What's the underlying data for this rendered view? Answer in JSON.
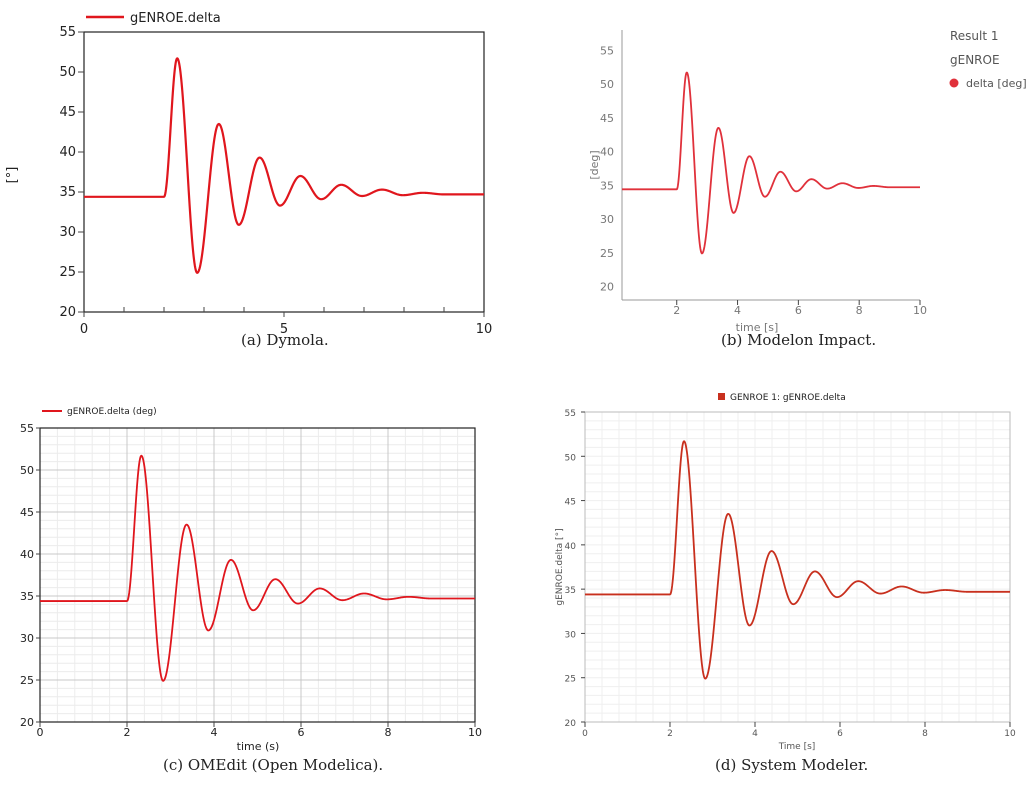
{
  "chart_data": [
    {
      "type": "line",
      "panel": "a",
      "caption": "(a) Dymola.",
      "legend": [
        "gENROE.delta"
      ],
      "ylabel": "[°]",
      "xlabel": "",
      "xlim": [
        0,
        10
      ],
      "ylim": [
        20,
        55
      ],
      "xticks": [
        0,
        5,
        10
      ],
      "yticks": [
        20,
        25,
        30,
        35,
        40,
        45,
        50,
        55
      ],
      "series": [
        {
          "name": "gENROE.delta",
          "color": "#e0161d"
        }
      ],
      "signal": {
        "t_step": 2.0,
        "steady_before": 34.4,
        "final": 34.7,
        "extrema_t": [
          2.33,
          2.83,
          3.37,
          3.87,
          4.39,
          4.9,
          5.41,
          5.93,
          6.43,
          6.95,
          7.45,
          7.97,
          8.47
        ],
        "extrema_v": [
          51.7,
          24.9,
          43.5,
          30.9,
          39.3,
          33.3,
          37.0,
          34.1,
          35.9,
          34.5,
          35.3,
          34.6,
          34.9
        ]
      }
    },
    {
      "type": "line",
      "panel": "b",
      "caption": "(b) Modelon Impact.",
      "legend_title_1": "Result 1",
      "legend_title_2": "gENROE",
      "legend": [
        "delta [deg]"
      ],
      "ylabel": "[deg]",
      "xlabel": "time [s]",
      "xlim": [
        0,
        10
      ],
      "ylim": [
        18,
        58
      ],
      "xticks": [
        2,
        4,
        6,
        8,
        10
      ],
      "yticks": [
        20,
        25,
        30,
        35,
        40,
        45,
        50,
        55
      ],
      "series": [
        {
          "name": "delta [deg]",
          "color": "#e0313b"
        }
      ],
      "signal": {
        "t_step": 2.0,
        "steady_before": 34.4,
        "final": 34.7,
        "extrema_t": [
          2.33,
          2.83,
          3.37,
          3.87,
          4.39,
          4.9,
          5.41,
          5.93,
          6.43,
          6.95,
          7.45,
          7.97,
          8.47
        ],
        "extrema_v": [
          51.7,
          24.9,
          43.5,
          30.9,
          39.3,
          33.3,
          37.0,
          34.1,
          35.9,
          34.5,
          35.3,
          34.6,
          34.9
        ]
      }
    },
    {
      "type": "line",
      "panel": "c",
      "caption": "(c) OMEdit (Open Modelica).",
      "legend": [
        "gENROE.delta (deg)"
      ],
      "xlabel": "time (s)",
      "ylabel": "",
      "xlim": [
        0,
        10
      ],
      "ylim": [
        20,
        55
      ],
      "xticks": [
        0,
        2,
        4,
        6,
        8,
        10
      ],
      "yticks": [
        20,
        25,
        30,
        35,
        40,
        45,
        50,
        55
      ],
      "grid": true,
      "series": [
        {
          "name": "gENROE.delta (deg)",
          "color": "#e0161d"
        }
      ],
      "signal": {
        "t_step": 2.0,
        "steady_before": 34.4,
        "final": 34.7,
        "extrema_t": [
          2.33,
          2.83,
          3.37,
          3.87,
          4.39,
          4.9,
          5.41,
          5.93,
          6.43,
          6.95,
          7.45,
          7.97,
          8.47
        ],
        "extrema_v": [
          51.7,
          24.9,
          43.5,
          30.9,
          39.3,
          33.3,
          37.0,
          34.1,
          35.9,
          34.5,
          35.3,
          34.6,
          34.9
        ]
      }
    },
    {
      "type": "line",
      "panel": "d",
      "caption": "(d) System Modeler.",
      "legend": [
        "GENROE 1: gENROE.delta"
      ],
      "xlabel": "Time [s]",
      "ylabel": "gENROE.delta [°]",
      "xlim": [
        0,
        10
      ],
      "ylim": [
        20,
        55
      ],
      "xticks": [
        0,
        2,
        4,
        6,
        8,
        10
      ],
      "yticks": [
        20,
        25,
        30,
        35,
        40,
        45,
        50,
        55
      ],
      "grid": true,
      "series": [
        {
          "name": "GENROE 1: gENROE.delta",
          "color": "#c8301e"
        }
      ],
      "signal": {
        "t_step": 2.0,
        "steady_before": 34.4,
        "final": 34.7,
        "extrema_t": [
          2.33,
          2.83,
          3.37,
          3.87,
          4.39,
          4.9,
          5.41,
          5.93,
          6.43,
          6.95,
          7.45,
          7.97,
          8.47
        ],
        "extrema_v": [
          51.7,
          24.9,
          43.5,
          30.9,
          39.3,
          33.3,
          37.0,
          34.1,
          35.9,
          34.5,
          35.3,
          34.6,
          34.9
        ]
      }
    }
  ]
}
